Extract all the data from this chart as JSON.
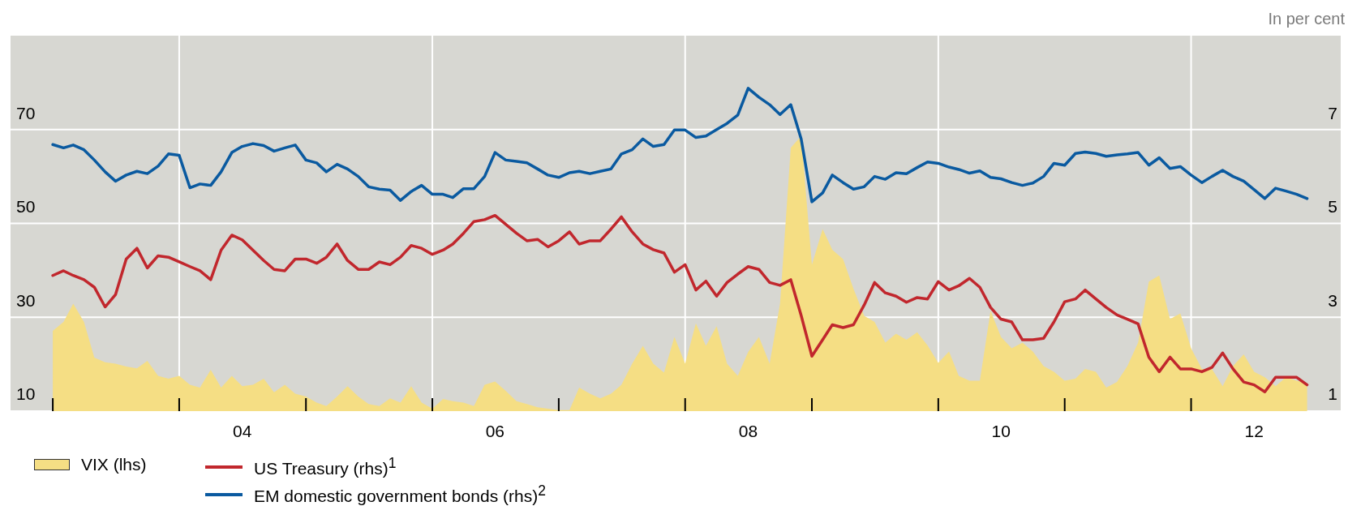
{
  "chart_data": {
    "type": "line",
    "annotations": [
      "In per cent"
    ],
    "x": [
      "2003-01",
      "2003-02",
      "2003-03",
      "2003-04",
      "2003-05",
      "2003-06",
      "2003-07",
      "2003-08",
      "2003-09",
      "2003-10",
      "2003-11",
      "2003-12",
      "2004-01",
      "2004-02",
      "2004-03",
      "2004-04",
      "2004-05",
      "2004-06",
      "2004-07",
      "2004-08",
      "2004-09",
      "2004-10",
      "2004-11",
      "2004-12",
      "2005-01",
      "2005-02",
      "2005-03",
      "2005-04",
      "2005-05",
      "2005-06",
      "2005-07",
      "2005-08",
      "2005-09",
      "2005-10",
      "2005-11",
      "2005-12",
      "2006-01",
      "2006-02",
      "2006-03",
      "2006-04",
      "2006-05",
      "2006-06",
      "2006-07",
      "2006-08",
      "2006-09",
      "2006-10",
      "2006-11",
      "2006-12",
      "2007-01",
      "2007-02",
      "2007-03",
      "2007-04",
      "2007-05",
      "2007-06",
      "2007-07",
      "2007-08",
      "2007-09",
      "2007-10",
      "2007-11",
      "2007-12",
      "2008-01",
      "2008-02",
      "2008-03",
      "2008-04",
      "2008-05",
      "2008-06",
      "2008-07",
      "2008-08",
      "2008-09",
      "2008-10",
      "2008-11",
      "2008-12",
      "2009-01",
      "2009-02",
      "2009-03",
      "2009-04",
      "2009-05",
      "2009-06",
      "2009-07",
      "2009-08",
      "2009-09",
      "2009-10",
      "2009-11",
      "2009-12",
      "2010-01",
      "2010-02",
      "2010-03",
      "2010-04",
      "2010-05",
      "2010-06",
      "2010-07",
      "2010-08",
      "2010-09",
      "2010-10",
      "2010-11",
      "2010-12",
      "2011-01",
      "2011-02",
      "2011-03",
      "2011-04",
      "2011-05",
      "2011-06",
      "2011-07",
      "2011-08",
      "2011-09",
      "2011-10",
      "2011-11",
      "2011-12",
      "2012-01",
      "2012-02",
      "2012-03",
      "2012-04",
      "2012-05",
      "2012-06",
      "2012-07",
      "2012-08",
      "2012-09",
      "2012-10",
      "2012-11",
      "2012-12"
    ],
    "series": [
      {
        "name": "VIX (lhs)",
        "type": "area",
        "color": "#f5de84",
        "values": [
          27.1,
          29.0,
          32.9,
          29.0,
          21.4,
          20.4,
          20.1,
          19.5,
          19.1,
          20.7,
          17.5,
          16.9,
          17.5,
          15.6,
          15.0,
          18.8,
          15.0,
          17.5,
          15.3,
          15.6,
          16.9,
          14.0,
          15.6,
          13.7,
          13.1,
          11.8,
          11.1,
          13.1,
          15.3,
          13.1,
          11.5,
          11.1,
          12.7,
          11.8,
          15.3,
          11.8,
          10.5,
          12.6,
          12.1,
          11.8,
          11.1,
          15.6,
          16.3,
          14.3,
          12.1,
          11.5,
          10.8,
          10.5,
          10.2,
          10.2,
          15.0,
          13.7,
          12.7,
          13.7,
          15.6,
          20.1,
          23.9,
          20.1,
          18.2,
          25.8,
          20.1,
          28.7,
          23.9,
          28.1,
          20.1,
          17.5,
          22.6,
          25.8,
          20.1,
          32.9,
          66.1,
          68.6,
          41.2,
          48.8,
          44.4,
          42.4,
          36.1,
          30.3,
          29.0,
          24.6,
          26.5,
          25.2,
          26.8,
          24.0,
          20.3,
          22.7,
          17.5,
          16.5,
          16.5,
          31.4,
          25.8,
          23.4,
          24.6,
          22.7,
          19.6,
          18.4,
          16.5,
          16.9,
          19.0,
          18.4,
          15.0,
          16.2,
          19.6,
          24.6,
          37.6,
          38.9,
          29.6,
          30.8,
          23.4,
          19.0,
          19.0,
          15.3,
          19.6,
          22.1,
          18.4,
          17.2,
          15.3,
          17.2,
          16.5,
          15.9
        ]
      },
      {
        "name": "US Treasury (rhs)$^{1}$",
        "type": "line",
        "axis": "y2",
        "color": "#c1272d",
        "values": [
          3.89,
          3.99,
          3.89,
          3.8,
          3.64,
          3.22,
          3.48,
          4.24,
          4.47,
          4.05,
          4.31,
          4.28,
          4.18,
          4.08,
          3.99,
          3.8,
          4.43,
          4.75,
          4.65,
          4.43,
          4.21,
          4.02,
          3.99,
          4.24,
          4.24,
          4.15,
          4.28,
          4.56,
          4.21,
          4.02,
          4.02,
          4.18,
          4.12,
          4.28,
          4.53,
          4.47,
          4.34,
          4.43,
          4.56,
          4.79,
          5.04,
          5.08,
          5.17,
          4.98,
          4.79,
          4.63,
          4.66,
          4.5,
          4.63,
          4.82,
          4.56,
          4.63,
          4.63,
          4.88,
          5.14,
          4.82,
          4.56,
          4.44,
          4.37,
          3.96,
          4.12,
          3.58,
          3.77,
          3.45,
          3.74,
          3.92,
          4.08,
          4.02,
          3.74,
          3.68,
          3.8,
          3.04,
          2.17,
          2.52,
          2.84,
          2.78,
          2.84,
          3.26,
          3.74,
          3.52,
          3.45,
          3.32,
          3.42,
          3.39,
          3.76,
          3.58,
          3.67,
          3.83,
          3.64,
          3.21,
          2.96,
          2.9,
          2.52,
          2.52,
          2.55,
          2.9,
          3.33,
          3.39,
          3.58,
          3.39,
          3.21,
          3.05,
          2.96,
          2.86,
          2.15,
          1.84,
          2.15,
          1.9,
          1.9,
          1.84,
          1.93,
          2.24,
          1.9,
          1.62,
          1.56,
          1.41,
          1.72,
          1.72,
          1.72,
          1.56
        ]
      },
      {
        "name": "EM domestic government bonds (rhs)$^{2}$",
        "type": "line",
        "axis": "y2",
        "color": "#0a5aa0",
        "values": [
          6.68,
          6.61,
          6.67,
          6.57,
          6.35,
          6.1,
          5.9,
          6.03,
          6.11,
          6.06,
          6.22,
          6.48,
          6.45,
          5.76,
          5.84,
          5.81,
          6.1,
          6.51,
          6.64,
          6.7,
          6.66,
          6.54,
          6.61,
          6.67,
          6.35,
          6.29,
          6.1,
          6.26,
          6.16,
          6.0,
          5.78,
          5.73,
          5.71,
          5.49,
          5.68,
          5.81,
          5.62,
          5.62,
          5.55,
          5.74,
          5.74,
          6.0,
          6.51,
          6.35,
          6.32,
          6.29,
          6.16,
          6.03,
          5.98,
          6.08,
          6.11,
          6.06,
          6.11,
          6.16,
          6.48,
          6.57,
          6.8,
          6.64,
          6.68,
          6.99,
          6.99,
          6.83,
          6.86,
          7.0,
          7.13,
          7.31,
          7.88,
          7.69,
          7.53,
          7.32,
          7.53,
          6.8,
          5.46,
          5.65,
          6.03,
          5.87,
          5.73,
          5.78,
          6.0,
          5.94,
          6.08,
          6.06,
          6.19,
          6.31,
          6.28,
          6.2,
          6.15,
          6.07,
          6.12,
          5.98,
          5.95,
          5.87,
          5.81,
          5.86,
          6.0,
          6.28,
          6.24,
          6.49,
          6.52,
          6.49,
          6.43,
          6.46,
          6.48,
          6.51,
          6.24,
          6.4,
          6.17,
          6.21,
          6.03,
          5.87,
          6.0,
          6.13,
          6.0,
          5.9,
          5.72,
          5.53,
          5.75,
          5.69,
          5.62,
          5.53
        ]
      }
    ],
    "xlim": [
      "2002-09-01",
      "2013-03-08"
    ],
    "xticks": [
      {
        "value": "2003-01-01",
        "label": null
      },
      {
        "value": "2004-01-01",
        "label": null
      },
      {
        "value": "2004-07-01",
        "label": "04"
      },
      {
        "value": "2005-01-01",
        "label": null
      },
      {
        "value": "2006-01-01",
        "label": null
      },
      {
        "value": "2006-07-01",
        "label": "06"
      },
      {
        "value": "2007-01-01",
        "label": null
      },
      {
        "value": "2008-01-01",
        "label": null
      },
      {
        "value": "2008-07-01",
        "label": "08"
      },
      {
        "value": "2009-01-01",
        "label": null
      },
      {
        "value": "2010-01-01",
        "label": null
      },
      {
        "value": "2010-07-01",
        "label": "10"
      },
      {
        "value": "2011-01-01",
        "label": null
      },
      {
        "value": "2012-01-01",
        "label": null
      },
      {
        "value": "2012-07-01",
        "label": "12"
      }
    ],
    "ylim": [
      10,
      90
    ],
    "yticks": [
      10,
      30,
      50,
      70
    ],
    "y2lim": [
      1,
      9
    ],
    "y2ticks": [
      1,
      3,
      5,
      7
    ],
    "grid": true,
    "legend": "bottom"
  }
}
